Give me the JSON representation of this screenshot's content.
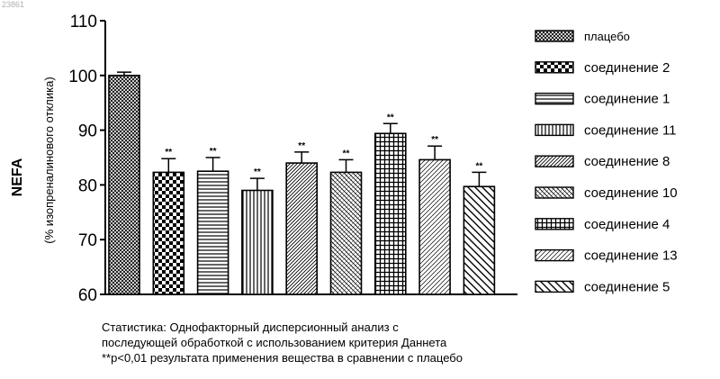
{
  "corner_id": "23861",
  "colors": {
    "ink": "#000000",
    "paper": "#ffffff"
  },
  "chart_data": {
    "type": "bar",
    "title": "",
    "xlabel": "",
    "ylabel": "NEFA",
    "ylabel_sub": "(% изопреналинового отклика)",
    "ylim": [
      60,
      110
    ],
    "yticks": [
      60,
      70,
      80,
      90,
      100,
      110
    ],
    "ytick_labels": [
      "60",
      "70",
      "80",
      "90",
      "100",
      "110"
    ],
    "grid": false,
    "legend_position": "right",
    "categories": [
      "плацебо",
      "соединение 2",
      "соединение 1",
      "соединение 11",
      "соединение 8",
      "соединение 10",
      "соединение 4",
      "соединение 13",
      "соединение 5"
    ],
    "values": [
      100,
      82.3,
      82.5,
      79,
      84,
      82.3,
      89.4,
      84.6,
      79.7
    ],
    "errors": [
      0.6,
      2.5,
      2.5,
      2.2,
      2.0,
      2.3,
      1.8,
      2.5,
      2.6
    ],
    "significance": [
      "",
      "**",
      "**",
      "**",
      "**",
      "**",
      "**",
      "**",
      "**"
    ],
    "patterns": [
      "crosshatch-fine",
      "checker",
      "hlines",
      "vlines",
      "diag-dense",
      "diag-fine",
      "grid",
      "diag-light",
      "diag-bold"
    ]
  },
  "notes": [
    "Статистика: Однофакторный дисперсионный анализ с",
    "последующей обработкой с использованием критерия Даннета",
    "**p<0,01 результата применения вещества в сравнении с плацебо"
  ]
}
